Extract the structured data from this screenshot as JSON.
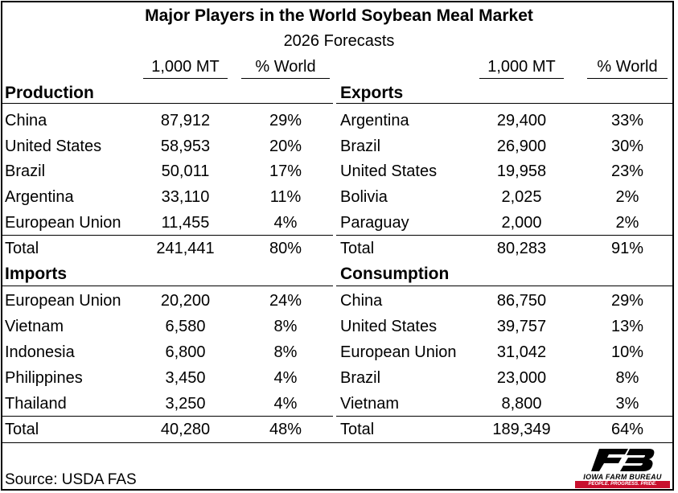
{
  "title": "Major Players in the World Soybean Meal Market",
  "subtitle": "2026 Forecasts",
  "column_headers": {
    "units": "1,000 MT",
    "share": "% World"
  },
  "sections": {
    "production": {
      "heading": "Production",
      "rows": [
        {
          "country": "China",
          "value": "87,912",
          "share": "29%"
        },
        {
          "country": "United States",
          "value": "58,953",
          "share": "20%"
        },
        {
          "country": "Brazil",
          "value": "50,011",
          "share": "17%"
        },
        {
          "country": "Argentina",
          "value": "33,110",
          "share": "11%"
        },
        {
          "country": "European Union",
          "value": "11,455",
          "share": "4%"
        }
      ],
      "total": {
        "label": "Total",
        "value": "241,441",
        "share": "80%"
      }
    },
    "exports": {
      "heading": "Exports",
      "rows": [
        {
          "country": "Argentina",
          "value": "29,400",
          "share": "33%"
        },
        {
          "country": "Brazil",
          "value": "26,900",
          "share": "30%"
        },
        {
          "country": "United States",
          "value": "19,958",
          "share": "23%"
        },
        {
          "country": "Bolivia",
          "value": "2,025",
          "share": "2%"
        },
        {
          "country": "Paraguay",
          "value": "2,000",
          "share": "2%"
        }
      ],
      "total": {
        "label": "Total",
        "value": "80,283",
        "share": "91%"
      }
    },
    "imports": {
      "heading": "Imports",
      "rows": [
        {
          "country": "European Union",
          "value": "20,200",
          "share": "24%"
        },
        {
          "country": "Vietnam",
          "value": "6,580",
          "share": "8%"
        },
        {
          "country": "Indonesia",
          "value": "6,800",
          "share": "8%"
        },
        {
          "country": "Philippines",
          "value": "3,450",
          "share": "4%"
        },
        {
          "country": "Thailand",
          "value": "3,250",
          "share": "4%"
        }
      ],
      "total": {
        "label": "Total",
        "value": "40,280",
        "share": "48%"
      }
    },
    "consumption": {
      "heading": "Consumption",
      "rows": [
        {
          "country": "China",
          "value": "86,750",
          "share": "29%"
        },
        {
          "country": "United States",
          "value": "39,757",
          "share": "13%"
        },
        {
          "country": "European Union",
          "value": "31,042",
          "share": "10%"
        },
        {
          "country": "Brazil",
          "value": "23,000",
          "share": "8%"
        },
        {
          "country": "Vietnam",
          "value": "8,800",
          "share": "3%"
        }
      ],
      "total": {
        "label": "Total",
        "value": "189,349",
        "share": "64%"
      }
    }
  },
  "source": "Source: USDA FAS",
  "logo": {
    "name": "IOWA FARM BUREAU",
    "tagline": "PEOPLE. PROGRESS. PRIDE.",
    "colors": {
      "mark": "#000000",
      "band": "#c8102e"
    }
  }
}
